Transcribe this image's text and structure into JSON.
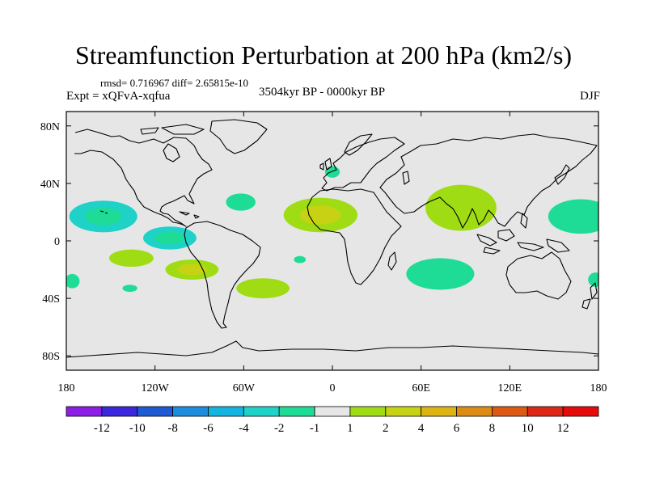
{
  "header": {
    "title": "Streamfunction Perturbation at 200 hPa (km2/s)",
    "stats": "rmsd= 0.716967 diff= 2.65815e-10",
    "experiment": "Expt = xQFvA-xqfua",
    "period": "3504kyr BP - 0000kyr BP",
    "season": "DJF"
  },
  "map": {
    "projection": "cylindrical equidistant",
    "lon_range": [
      -180,
      180
    ],
    "lat_range": [
      -90,
      90
    ],
    "lon_ticks": [
      {
        "lon": -180,
        "label": "180"
      },
      {
        "lon": -120,
        "label": "120W"
      },
      {
        "lon": -60,
        "label": "60W"
      },
      {
        "lon": 0,
        "label": "0"
      },
      {
        "lon": 60,
        "label": "60E"
      },
      {
        "lon": 120,
        "label": "120E"
      },
      {
        "lon": 180,
        "label": "180"
      }
    ],
    "lat_ticks": [
      {
        "lat": 80,
        "label": "80N"
      },
      {
        "lat": 40,
        "label": "40N"
      },
      {
        "lat": 0,
        "label": "0"
      },
      {
        "lat": -40,
        "label": "40S"
      },
      {
        "lat": -80,
        "label": "80S"
      }
    ],
    "background_color": "#e6e6e6",
    "coast_color": "#000000"
  },
  "colorbar": {
    "labels": [
      "-12",
      "-10",
      "-8",
      "-6",
      "-4",
      "-2",
      "-1",
      "1",
      "2",
      "4",
      "6",
      "8",
      "10",
      "12"
    ],
    "colors": [
      "#8c1ee6",
      "#3c28dc",
      "#1e5ad2",
      "#1e8cdc",
      "#14b4e0",
      "#1ed2c8",
      "#1edc96",
      "#e6e6e6",
      "#a0dc14",
      "#c8d214",
      "#dcb414",
      "#dc8c14",
      "#dc5a14",
      "#dc2814",
      "#e60a0a"
    ]
  },
  "chart_data": {
    "type": "heatmap",
    "title": "Streamfunction Perturbation at 200 hPa (km2/s)",
    "units": "km2/s",
    "levels": [
      -12,
      -10,
      -8,
      -6,
      -4,
      -2,
      -1,
      1,
      2,
      4,
      6,
      8,
      10,
      12
    ],
    "anomalies": [
      {
        "name": "central-pacific-north",
        "lon": -155,
        "lat": 17,
        "rlon": 23,
        "rlat": 11,
        "value_ranges": [
          "-4 to -2",
          "-2 to -1"
        ]
      },
      {
        "name": "east-pacific-equatorial",
        "lon": -110,
        "lat": 2,
        "rlon": 18,
        "rlat": 8,
        "value_ranges": [
          "-4 to -2",
          "-2 to -1"
        ]
      },
      {
        "name": "south-pacific-west",
        "lon": -136,
        "lat": -12,
        "rlon": 15,
        "rlat": 6,
        "value_ranges": [
          "1 to 2"
        ]
      },
      {
        "name": "south-pacific-east",
        "lon": -95,
        "lat": -20,
        "rlon": 18,
        "rlat": 7,
        "value_ranges": [
          "1 to 2",
          "2 to 4"
        ]
      },
      {
        "name": "south-atlantic-west",
        "lon": -47,
        "lat": -33,
        "rlon": 18,
        "rlat": 7,
        "value_ranges": [
          "1 to 2"
        ]
      },
      {
        "name": "south-pacific-far-west",
        "lon": -176,
        "lat": -28,
        "rlon": 5,
        "rlat": 5,
        "value_ranges": [
          "-2 to -1"
        ]
      },
      {
        "name": "south-pacific-small",
        "lon": -137,
        "lat": -33,
        "rlon": 5,
        "rlat": 2.5,
        "value_ranges": [
          "-2 to -1"
        ]
      },
      {
        "name": "gulf-of-mexico-east",
        "lon": -62,
        "lat": 27,
        "rlon": 10,
        "rlat": 6,
        "value_ranges": [
          "-2 to -1"
        ]
      },
      {
        "name": "south-atlantic-central",
        "lon": -22,
        "lat": -13,
        "rlon": 4,
        "rlat": 2.5,
        "value_ranges": [
          "-2 to -1"
        ]
      },
      {
        "name": "western-europe",
        "lon": 0,
        "lat": 48,
        "rlon": 5,
        "rlat": 4,
        "value_ranges": [
          "-2 to -1"
        ]
      },
      {
        "name": "north-africa",
        "lon": -8,
        "lat": 18,
        "rlon": 25,
        "rlat": 12,
        "value_ranges": [
          "1 to 2",
          "2 to 4"
        ]
      },
      {
        "name": "south-asia",
        "lon": 87,
        "lat": 23,
        "rlon": 24,
        "rlat": 16,
        "value_ranges": [
          "1 to 2"
        ]
      },
      {
        "name": "indian-ocean-south",
        "lon": 73,
        "lat": -23,
        "rlon": 23,
        "rlat": 11,
        "value_ranges": [
          "-2 to -1"
        ]
      },
      {
        "name": "west-pacific-north",
        "lon": 168,
        "lat": 17,
        "rlon": 22,
        "rlat": 12,
        "value_ranges": [
          "-2 to -1"
        ]
      },
      {
        "name": "australia-east-edge",
        "lon": 178,
        "lat": -27,
        "rlon": 5,
        "rlat": 5,
        "value_ranges": [
          "-2 to -1"
        ]
      }
    ]
  }
}
